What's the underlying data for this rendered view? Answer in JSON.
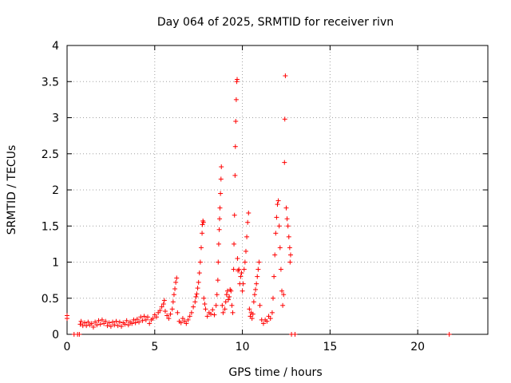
{
  "chart_data": {
    "type": "scatter",
    "title": "Day 064 of 2025, SRMTID for receiver rivn",
    "xlabel": "GPS time / hours",
    "ylabel": "SRMTID / TECUs",
    "xlim": [
      0,
      24
    ],
    "ylim": [
      0,
      4
    ],
    "xticks": [
      0,
      5,
      10,
      15,
      20
    ],
    "xtick_labels": [
      "0",
      "5",
      "10",
      "15",
      "20"
    ],
    "yticks": [
      0,
      0.5,
      1,
      1.5,
      2,
      2.5,
      3,
      3.5,
      4
    ],
    "ytick_labels": [
      "0",
      "0.5",
      "1",
      "1.5",
      "2",
      "2.5",
      "3",
      "3.5",
      "4"
    ],
    "grid": true,
    "marker": "+",
    "color": "#ff0000",
    "series": [
      {
        "name": "SRMTID",
        "points": [
          [
            0.0,
            0.26
          ],
          [
            0.0,
            0.22
          ],
          [
            0.4,
            0.0
          ],
          [
            0.6,
            0.0
          ],
          [
            0.7,
            0.0
          ],
          [
            0.75,
            0.14
          ],
          [
            0.8,
            0.18
          ],
          [
            0.9,
            0.12
          ],
          [
            1.0,
            0.16
          ],
          [
            1.1,
            0.12
          ],
          [
            1.2,
            0.17
          ],
          [
            1.3,
            0.13
          ],
          [
            1.4,
            0.15
          ],
          [
            1.5,
            0.1
          ],
          [
            1.6,
            0.17
          ],
          [
            1.7,
            0.13
          ],
          [
            1.8,
            0.19
          ],
          [
            1.9,
            0.14
          ],
          [
            2.0,
            0.2
          ],
          [
            2.1,
            0.15
          ],
          [
            2.2,
            0.18
          ],
          [
            2.3,
            0.12
          ],
          [
            2.4,
            0.16
          ],
          [
            2.5,
            0.11
          ],
          [
            2.6,
            0.17
          ],
          [
            2.7,
            0.13
          ],
          [
            2.8,
            0.18
          ],
          [
            2.9,
            0.12
          ],
          [
            3.0,
            0.17
          ],
          [
            3.1,
            0.11
          ],
          [
            3.2,
            0.16
          ],
          [
            3.3,
            0.14
          ],
          [
            3.4,
            0.19
          ],
          [
            3.5,
            0.13
          ],
          [
            3.6,
            0.17
          ],
          [
            3.7,
            0.15
          ],
          [
            3.8,
            0.2
          ],
          [
            3.9,
            0.16
          ],
          [
            4.0,
            0.21
          ],
          [
            4.1,
            0.17
          ],
          [
            4.2,
            0.24
          ],
          [
            4.3,
            0.19
          ],
          [
            4.4,
            0.25
          ],
          [
            4.5,
            0.2
          ],
          [
            4.6,
            0.24
          ],
          [
            4.7,
            0.15
          ],
          [
            4.8,
            0.2
          ],
          [
            4.9,
            0.22
          ],
          [
            5.0,
            0.27
          ],
          [
            5.1,
            0.24
          ],
          [
            5.2,
            0.3
          ],
          [
            5.3,
            0.33
          ],
          [
            5.4,
            0.38
          ],
          [
            5.5,
            0.42
          ],
          [
            5.55,
            0.47
          ],
          [
            5.6,
            0.32
          ],
          [
            5.7,
            0.26
          ],
          [
            5.8,
            0.22
          ],
          [
            5.9,
            0.28
          ],
          [
            6.0,
            0.35
          ],
          [
            6.05,
            0.45
          ],
          [
            6.1,
            0.55
          ],
          [
            6.15,
            0.63
          ],
          [
            6.2,
            0.72
          ],
          [
            6.25,
            0.78
          ],
          [
            6.3,
            0.3
          ],
          [
            6.4,
            0.18
          ],
          [
            6.5,
            0.16
          ],
          [
            6.6,
            0.22
          ],
          [
            6.7,
            0.18
          ],
          [
            6.8,
            0.15
          ],
          [
            6.9,
            0.2
          ],
          [
            7.0,
            0.25
          ],
          [
            7.1,
            0.3
          ],
          [
            7.2,
            0.38
          ],
          [
            7.3,
            0.45
          ],
          [
            7.35,
            0.52
          ],
          [
            7.4,
            0.56
          ],
          [
            7.45,
            0.64
          ],
          [
            7.5,
            0.72
          ],
          [
            7.55,
            0.85
          ],
          [
            7.6,
            1.0
          ],
          [
            7.65,
            1.2
          ],
          [
            7.7,
            1.4
          ],
          [
            7.72,
            1.52
          ],
          [
            7.75,
            1.57
          ],
          [
            7.78,
            1.55
          ],
          [
            7.8,
            0.5
          ],
          [
            7.85,
            0.42
          ],
          [
            7.9,
            0.35
          ],
          [
            8.0,
            0.25
          ],
          [
            8.1,
            0.3
          ],
          [
            8.2,
            0.28
          ],
          [
            8.3,
            0.34
          ],
          [
            8.4,
            0.27
          ],
          [
            8.5,
            0.4
          ],
          [
            8.55,
            0.55
          ],
          [
            8.6,
            0.75
          ],
          [
            8.62,
            1.0
          ],
          [
            8.65,
            1.25
          ],
          [
            8.68,
            1.45
          ],
          [
            8.7,
            1.6
          ],
          [
            8.72,
            1.75
          ],
          [
            8.75,
            1.95
          ],
          [
            8.78,
            2.15
          ],
          [
            8.8,
            2.32
          ],
          [
            8.85,
            0.4
          ],
          [
            8.9,
            0.3
          ],
          [
            9.0,
            0.35
          ],
          [
            9.05,
            0.45
          ],
          [
            9.1,
            0.55
          ],
          [
            9.15,
            0.6
          ],
          [
            9.2,
            0.48
          ],
          [
            9.25,
            0.52
          ],
          [
            9.3,
            0.62
          ],
          [
            9.35,
            0.6
          ],
          [
            9.4,
            0.4
          ],
          [
            9.45,
            0.3
          ],
          [
            9.5,
            0.9
          ],
          [
            9.52,
            1.25
          ],
          [
            9.55,
            1.65
          ],
          [
            9.58,
            2.2
          ],
          [
            9.6,
            2.6
          ],
          [
            9.62,
            2.95
          ],
          [
            9.65,
            3.25
          ],
          [
            9.68,
            3.5
          ],
          [
            9.7,
            3.53
          ],
          [
            9.72,
            1.05
          ],
          [
            9.75,
            0.88
          ],
          [
            9.8,
            0.9
          ],
          [
            9.85,
            0.7
          ],
          [
            9.9,
            0.8
          ],
          [
            9.95,
            0.85
          ],
          [
            10.0,
            0.6
          ],
          [
            10.05,
            0.7
          ],
          [
            10.1,
            0.9
          ],
          [
            10.15,
            1.0
          ],
          [
            10.2,
            1.15
          ],
          [
            10.25,
            1.35
          ],
          [
            10.3,
            1.55
          ],
          [
            10.35,
            1.68
          ],
          [
            10.4,
            0.35
          ],
          [
            10.45,
            0.25
          ],
          [
            10.5,
            0.3
          ],
          [
            10.55,
            0.22
          ],
          [
            10.6,
            0.28
          ],
          [
            10.65,
            0.45
          ],
          [
            10.7,
            0.55
          ],
          [
            10.75,
            0.62
          ],
          [
            10.8,
            0.7
          ],
          [
            10.85,
            0.8
          ],
          [
            10.9,
            0.9
          ],
          [
            10.95,
            1.0
          ],
          [
            11.0,
            0.4
          ],
          [
            11.1,
            0.2
          ],
          [
            11.2,
            0.15
          ],
          [
            11.3,
            0.2
          ],
          [
            11.4,
            0.18
          ],
          [
            11.5,
            0.25
          ],
          [
            11.6,
            0.22
          ],
          [
            11.7,
            0.3
          ],
          [
            11.75,
            0.5
          ],
          [
            11.8,
            0.8
          ],
          [
            11.85,
            1.1
          ],
          [
            11.9,
            1.4
          ],
          [
            11.95,
            1.62
          ],
          [
            12.0,
            1.8
          ],
          [
            12.05,
            1.85
          ],
          [
            12.1,
            1.5
          ],
          [
            12.15,
            1.2
          ],
          [
            12.2,
            0.9
          ],
          [
            12.25,
            0.6
          ],
          [
            12.3,
            0.4
          ],
          [
            12.35,
            0.55
          ],
          [
            12.4,
            2.38
          ],
          [
            12.42,
            2.98
          ],
          [
            12.45,
            3.58
          ],
          [
            12.5,
            1.75
          ],
          [
            12.55,
            1.6
          ],
          [
            12.6,
            1.5
          ],
          [
            12.65,
            1.35
          ],
          [
            12.7,
            1.2
          ],
          [
            12.72,
            1.0
          ],
          [
            12.75,
            1.1
          ],
          [
            12.8,
            0.0
          ],
          [
            13.0,
            0.0
          ],
          [
            21.8,
            0.0
          ]
        ]
      }
    ]
  }
}
